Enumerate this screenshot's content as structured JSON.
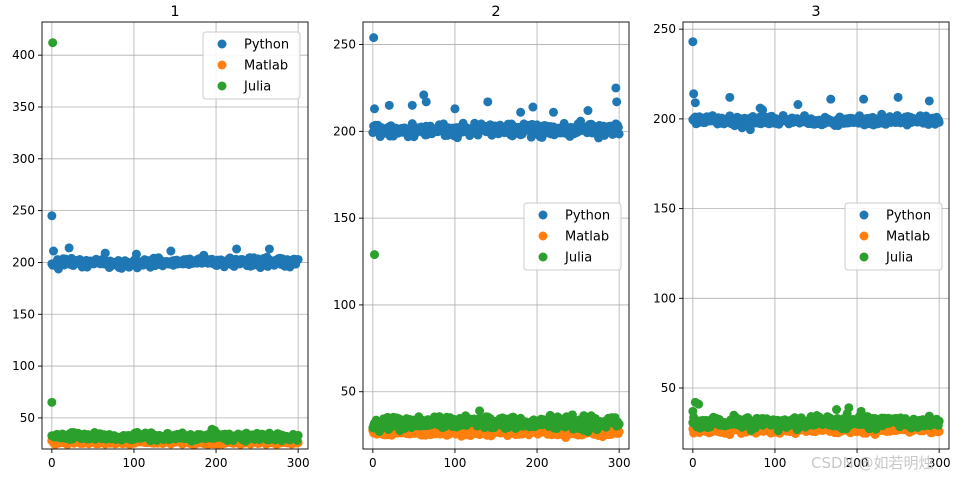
{
  "watermark": "CSDN @如若明烛",
  "chart_data": [
    {
      "type": "scatter",
      "title": "1",
      "xlabel": "",
      "ylabel": "",
      "xlim": [
        -12,
        312
      ],
      "ylim": [
        20,
        432
      ],
      "xticks": [
        0,
        100,
        200,
        300
      ],
      "yticks": [
        50,
        100,
        150,
        200,
        250,
        300,
        350,
        400
      ],
      "grid": true,
      "legend_position": "top-right",
      "series": [
        {
          "name": "Python",
          "color": "#1f77b4",
          "base": 200,
          "noise": 2.2,
          "outliers": [
            [
              0,
              245
            ],
            [
              2,
              211
            ],
            [
              21,
              214
            ],
            [
              65,
              209
            ],
            [
              103,
              208
            ],
            [
              145,
              211
            ],
            [
              185,
              207
            ],
            [
              225,
              213
            ],
            [
              265,
              213
            ]
          ]
        },
        {
          "name": "Matlab",
          "color": "#ff7f0e",
          "base": 27,
          "noise": 1.3,
          "outliers": [
            [
              0,
              28
            ],
            [
              2,
              26
            ]
          ]
        },
        {
          "name": "Julia",
          "color": "#2ca02c",
          "base": 32,
          "noise": 1.8,
          "outliers": [
            [
              1,
              412
            ],
            [
              0,
              65
            ],
            [
              195,
              39
            ],
            [
              198,
              38
            ]
          ]
        }
      ]
    },
    {
      "type": "scatter",
      "title": "2",
      "xlabel": "",
      "ylabel": "",
      "xlim": [
        -12,
        312
      ],
      "ylim": [
        17,
        263
      ],
      "xticks": [
        0,
        100,
        200,
        300
      ],
      "yticks": [
        50,
        100,
        150,
        200,
        250
      ],
      "grid": true,
      "legend_position": "center-right",
      "series": [
        {
          "name": "Python",
          "color": "#1f77b4",
          "base": 201,
          "noise": 1.8,
          "outliers": [
            [
              1,
              254
            ],
            [
              2,
              213
            ],
            [
              20,
              215
            ],
            [
              48,
              215
            ],
            [
              62,
              221
            ],
            [
              65,
              217
            ],
            [
              100,
              213
            ],
            [
              140,
              217
            ],
            [
              180,
              211
            ],
            [
              195,
              214
            ],
            [
              220,
              211
            ],
            [
              262,
              212
            ],
            [
              296,
              225
            ],
            [
              297,
              217
            ]
          ]
        },
        {
          "name": "Matlab",
          "color": "#ff7f0e",
          "base": 27,
          "noise": 1.2,
          "outliers": [
            [
              0,
              28
            ],
            [
              3,
              26
            ]
          ]
        },
        {
          "name": "Julia",
          "color": "#2ca02c",
          "base": 32,
          "noise": 1.8,
          "outliers": [
            [
              2,
              129
            ],
            [
              130,
              39
            ]
          ]
        }
      ]
    },
    {
      "type": "scatter",
      "title": "3",
      "xlabel": "",
      "ylabel": "",
      "xlim": [
        -12,
        312
      ],
      "ylim": [
        16,
        254
      ],
      "xticks": [
        0,
        100,
        200,
        300
      ],
      "yticks": [
        50,
        100,
        150,
        200,
        250
      ],
      "grid": true,
      "legend_position": "center-right",
      "series": [
        {
          "name": "Python",
          "color": "#1f77b4",
          "base": 199,
          "noise": 1.3,
          "outliers": [
            [
              0,
              243
            ],
            [
              1,
              214
            ],
            [
              3,
              209
            ],
            [
              45,
              212
            ],
            [
              60,
              195
            ],
            [
              65,
              196
            ],
            [
              70,
              194
            ],
            [
              82,
              206
            ],
            [
              85,
              205
            ],
            [
              128,
              208
            ],
            [
              168,
              211
            ],
            [
              208,
              211
            ],
            [
              250,
              212
            ],
            [
              288,
              210
            ]
          ]
        },
        {
          "name": "Matlab",
          "color": "#ff7f0e",
          "base": 27,
          "noise": 1.2,
          "outliers": [
            [
              2,
              27
            ],
            [
              5,
              26
            ]
          ]
        },
        {
          "name": "Julia",
          "color": "#2ca02c",
          "base": 31,
          "noise": 1.7,
          "outliers": [
            [
              0,
              37
            ],
            [
              3,
              42
            ],
            [
              7,
              41
            ],
            [
              175,
              38
            ],
            [
              190,
              39
            ],
            [
              205,
              37
            ]
          ]
        }
      ]
    }
  ]
}
